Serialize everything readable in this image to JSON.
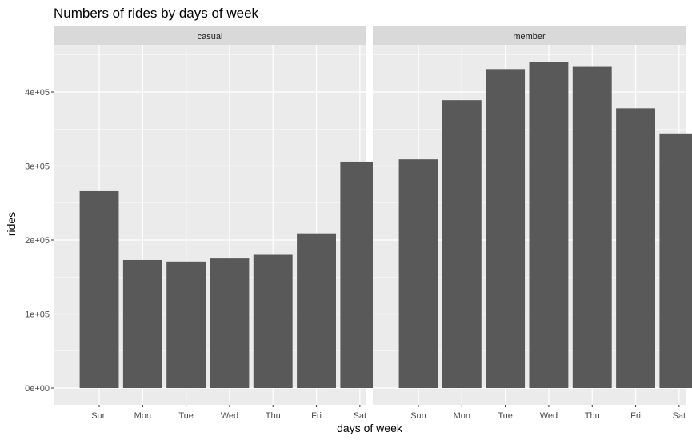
{
  "chart_data": {
    "type": "bar",
    "title": "Numbers of rides by days of week",
    "xlabel": "days of week",
    "ylabel": "rides",
    "categories": [
      "Sun",
      "Mon",
      "Tue",
      "Wed",
      "Thu",
      "Fri",
      "Sat"
    ],
    "ylim": [
      0,
      460000
    ],
    "yticks": [
      {
        "value": 0,
        "label": "0e+00"
      },
      {
        "value": 100000,
        "label": "1e+05"
      },
      {
        "value": 200000,
        "label": "2e+05"
      },
      {
        "value": 300000,
        "label": "3e+05"
      },
      {
        "value": 400000,
        "label": "4e+05"
      }
    ],
    "grid": true,
    "facets": [
      {
        "name": "casual",
        "values": [
          266000,
          173000,
          171000,
          175000,
          180000,
          209000,
          306000
        ]
      },
      {
        "name": "member",
        "values": [
          309000,
          389000,
          431000,
          441000,
          434000,
          378000,
          344000
        ]
      }
    ],
    "colors": {
      "bar": "#595959",
      "panel_background": "#ebebeb",
      "strip_background": "#d9d9d9",
      "grid": "#ffffff"
    }
  }
}
